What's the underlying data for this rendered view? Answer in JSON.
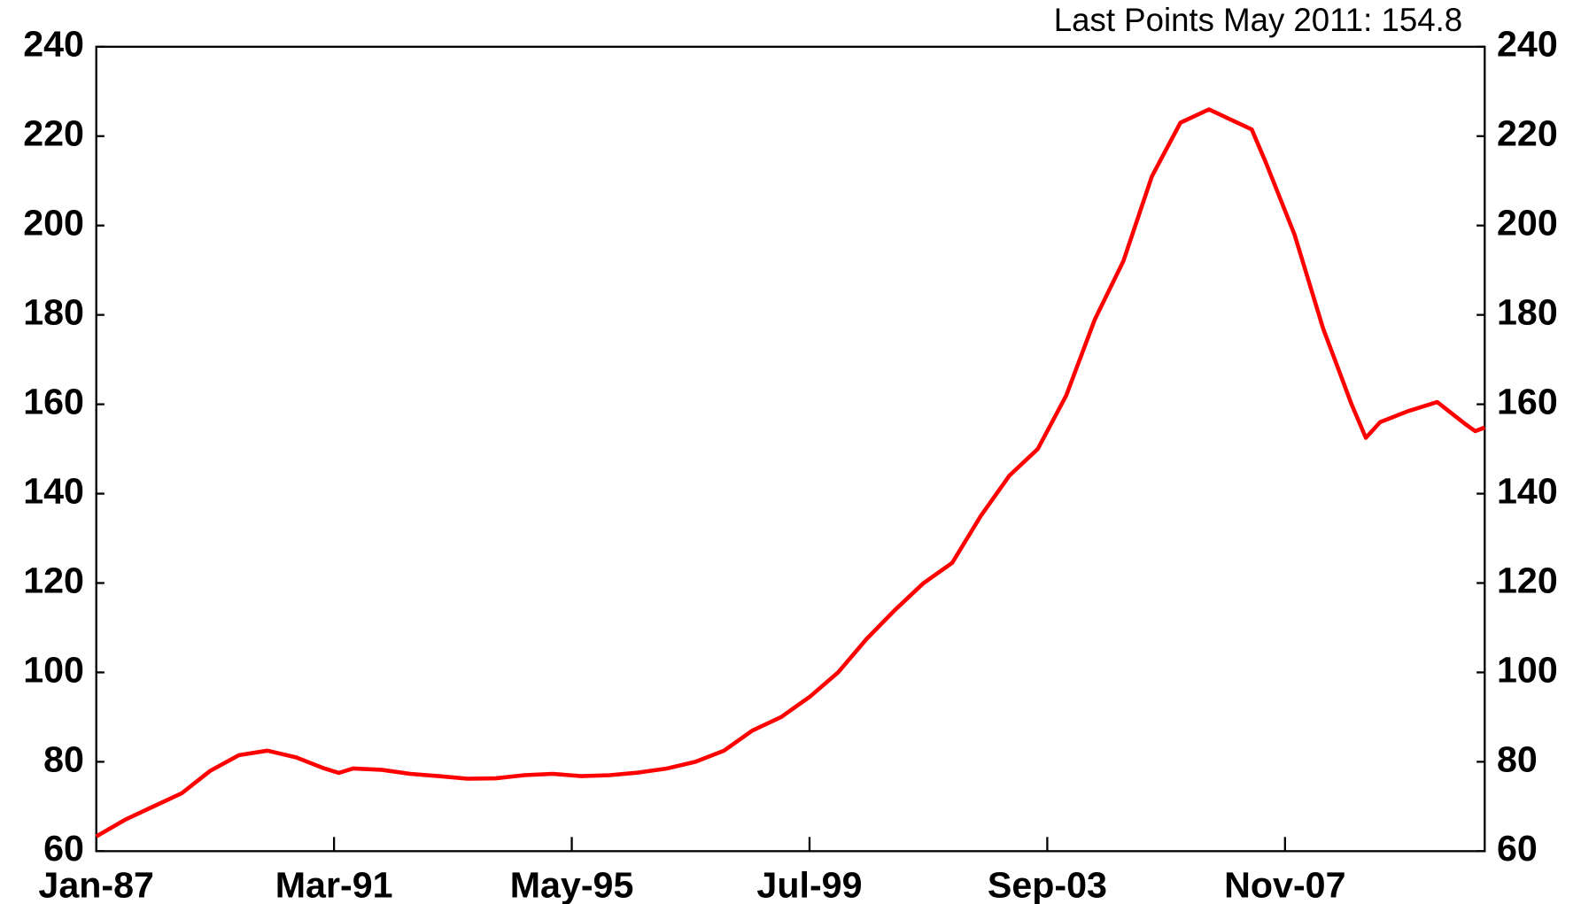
{
  "chart_data": {
    "type": "line",
    "annotation": "Last Points May 2011: 154.8",
    "x": [
      "Jan-87",
      "Jul-87",
      "Jan-88",
      "Jul-88",
      "Jan-89",
      "Jul-89",
      "Jan-90",
      "Jul-90",
      "Jan-91",
      "Apr-91",
      "Jul-91",
      "Jan-92",
      "Jul-92",
      "Jan-93",
      "Jul-93",
      "Jan-94",
      "Jul-94",
      "Jan-95",
      "Jul-95",
      "Jan-96",
      "Jul-96",
      "Jan-97",
      "Jul-97",
      "Jan-98",
      "Jul-98",
      "Jan-99",
      "Jul-99",
      "Jan-00",
      "Jul-00",
      "Jan-01",
      "Jul-01",
      "Jan-02",
      "Jul-02",
      "Jan-03",
      "Jul-03",
      "Jan-04",
      "Jul-04",
      "Jan-05",
      "Jul-05",
      "Jan-06",
      "Jul-06",
      "Jan-07",
      "Apr-07",
      "Jul-07",
      "Jan-08",
      "Jul-08",
      "Jan-09",
      "Apr-09",
      "Jul-09",
      "Jan-10",
      "Jul-10",
      "Jan-11",
      "Mar-11",
      "May-11"
    ],
    "series": [
      {
        "color": "#ff0000",
        "values": [
          63.3,
          67,
          70,
          73,
          78,
          81.5,
          82.5,
          81,
          78.5,
          77.5,
          78.5,
          78.2,
          77.3,
          76.8,
          76.2,
          76.3,
          77,
          77.3,
          76.8,
          77,
          77.6,
          78.5,
          80,
          82.5,
          87,
          90,
          94.5,
          100,
          107.5,
          114,
          120,
          124.5,
          135,
          144,
          150,
          162,
          179,
          192,
          211,
          223,
          226,
          223,
          221.5,
          214,
          198,
          177,
          160,
          152.5,
          156,
          158.5,
          160.5,
          155.5,
          154,
          154.8
        ]
      }
    ],
    "xlim": [
      "Jan-87",
      "May-11"
    ],
    "xticks": [
      "Jan-87",
      "Mar-91",
      "May-95",
      "Jul-99",
      "Sep-03",
      "Nov-07"
    ],
    "ylim": [
      60,
      240
    ],
    "yticks": [
      60,
      80,
      100,
      120,
      140,
      160,
      180,
      200,
      220,
      240
    ]
  }
}
